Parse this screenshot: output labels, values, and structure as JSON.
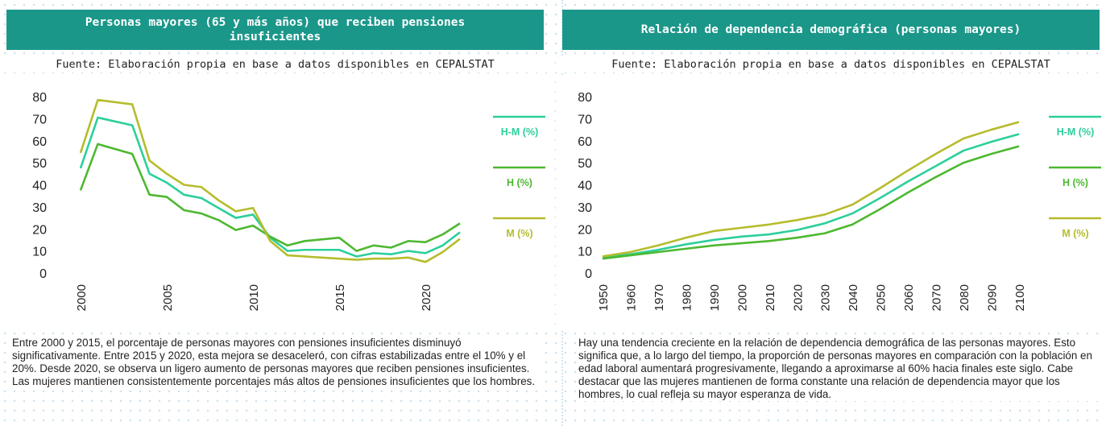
{
  "chart_data": [
    {
      "type": "line",
      "title": "Personas mayores (65 y más años) que reciben pensiones insuficientes",
      "source": "Fuente: Elaboración propia en base a datos disponibles en CEPALSTAT",
      "note": "Entre 2000 y 2015, el porcentaje de personas mayores con pensiones insuficientes disminuyó significativamente. Entre 2015 y 2020, esta mejora se desaceleró, con cifras estabilizadas entre el 10% y el 20%. Desde 2020, se observa un ligero aumento de personas mayores que reciben pensiones insuficientes. Las mujeres mantienen consistentemente porcentajes más altos de pensiones insuficientes que los hombres.",
      "x": [
        2000,
        2001,
        2003,
        2004,
        2005,
        2006,
        2007,
        2008,
        2009,
        2010,
        2011,
        2012,
        2013,
        2015,
        2016,
        2017,
        2018,
        2019,
        2020,
        2021,
        2022
      ],
      "xlim": [
        2000,
        2022
      ],
      "xticks": [
        2000,
        2005,
        2010,
        2015,
        2020
      ],
      "ylim": [
        0,
        80
      ],
      "yticks": [
        0,
        10,
        20,
        30,
        40,
        50,
        60,
        70,
        80
      ],
      "legend": "right",
      "series": [
        {
          "name": "H-M (%)",
          "color": "#2ccf9c",
          "values": [
            47.5,
            70.5,
            67,
            45,
            41,
            35.5,
            34,
            29.5,
            25,
            26.5,
            16,
            10,
            10.5,
            10.5,
            7.5,
            9,
            8.5,
            10,
            9,
            12.5,
            18.5
          ]
        },
        {
          "name": "H (%)",
          "color": "#4db830",
          "values": [
            37.5,
            58.5,
            54,
            35.5,
            34.5,
            28.5,
            27,
            24,
            19.5,
            21.5,
            16.5,
            12.5,
            14.5,
            16,
            10,
            12.5,
            11.5,
            14.5,
            14,
            17.5,
            22.5
          ]
        },
        {
          "name": "M (%)",
          "color": "#b6bc2c",
          "values": [
            54.5,
            78.5,
            76.5,
            51,
            45,
            40,
            39,
            33,
            28,
            29.5,
            14.5,
            8,
            7.5,
            6.5,
            6,
            6.5,
            6.5,
            7,
            5,
            9.5,
            15.5
          ]
        }
      ]
    },
    {
      "type": "line",
      "title": "Relación de dependencia demográfica (personas mayores)",
      "source": "Fuente: Elaboración propia en base a datos disponibles en CEPALSTAT",
      "note": "Hay una tendencia creciente en la relación de dependencia demográfica de las personas mayores. Esto significa que, a lo largo del tiempo, la proporción de personas mayores en comparación con la población en edad laboral aumentará progresivamente, llegando a aproximarse al 60% hacia finales este siglo. Cabe destacar que las mujeres mantienen de forma constante una relación de dependencia mayor que los hombres, lo cual refleja su mayor esperanza de vida.",
      "x": [
        1950,
        1960,
        1970,
        1980,
        1990,
        2000,
        2010,
        2020,
        2030,
        2040,
        2050,
        2060,
        2070,
        2080,
        2090,
        2100
      ],
      "xlim": [
        1950,
        2100
      ],
      "xticks": [
        1950,
        1960,
        1970,
        1980,
        1990,
        2000,
        2010,
        2020,
        2030,
        2040,
        2050,
        2060,
        2070,
        2080,
        2090,
        2100
      ],
      "ylim": [
        0,
        80
      ],
      "yticks": [
        0,
        10,
        20,
        30,
        40,
        50,
        60,
        70,
        80
      ],
      "legend": "right",
      "series": [
        {
          "name": "H-M (%)",
          "color": "#2ccf9c",
          "values": [
            7,
            8.5,
            10.5,
            13,
            15,
            16.5,
            17.5,
            19.5,
            22.5,
            27,
            34,
            41.5,
            48.5,
            55.5,
            59.5,
            63
          ]
        },
        {
          "name": "H (%)",
          "color": "#4db830",
          "values": [
            6.5,
            8,
            9.5,
            11,
            12.5,
            13.5,
            14.5,
            16,
            18,
            22,
            29,
            36.5,
            43.5,
            50,
            54,
            57.5
          ]
        },
        {
          "name": "M (%)",
          "color": "#b6bc2c",
          "values": [
            7.5,
            9.5,
            12.5,
            16,
            19,
            20.5,
            22,
            24,
            26.5,
            31,
            38.5,
            46.5,
            54,
            61,
            65,
            68.5
          ]
        }
      ]
    }
  ]
}
